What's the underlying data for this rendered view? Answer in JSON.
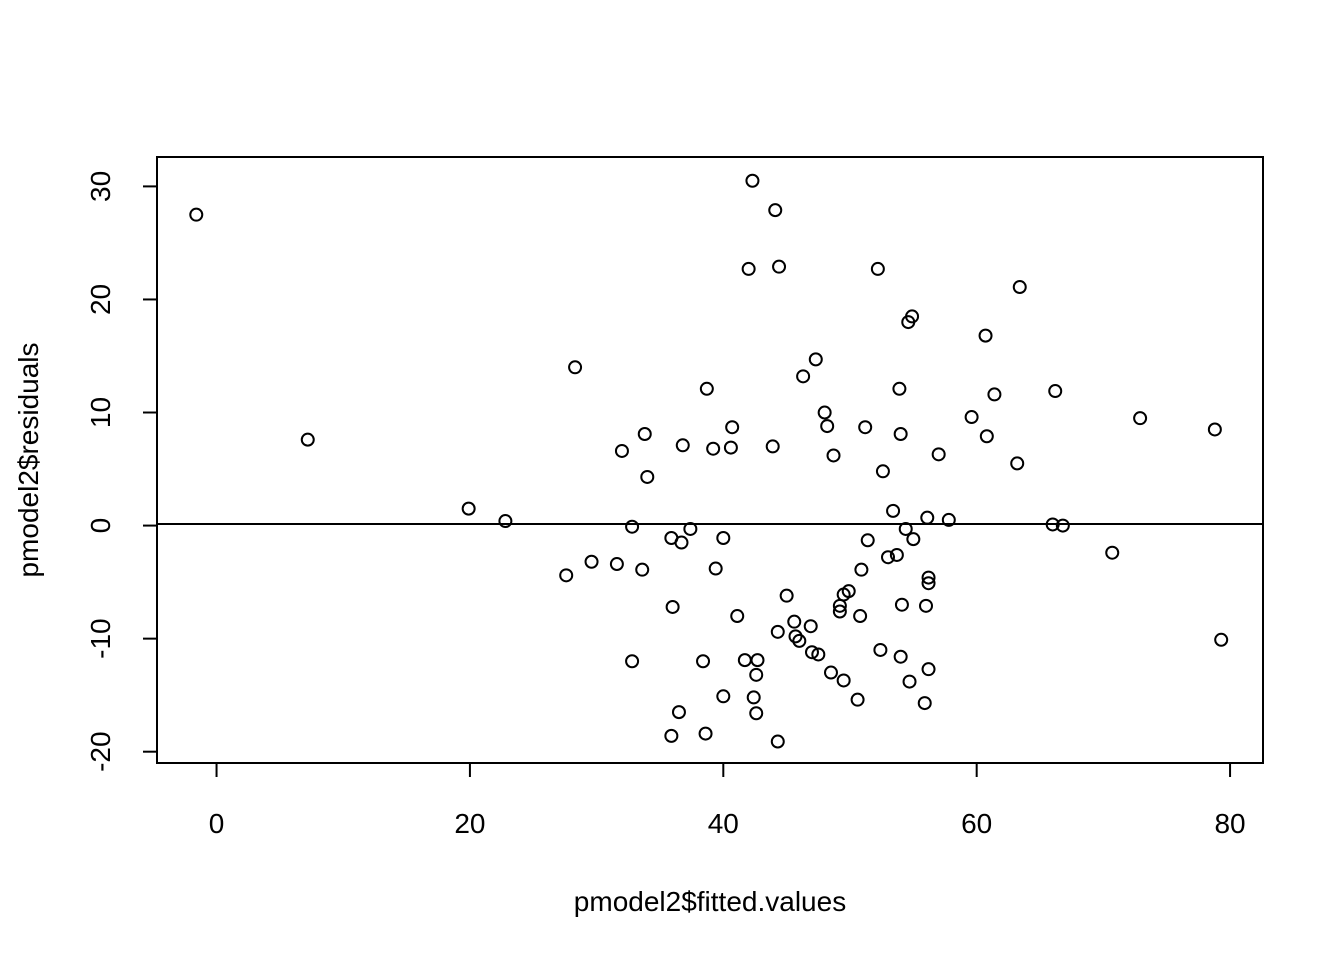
{
  "chart_data": {
    "type": "scatter",
    "title": "",
    "xlabel": "pmodel2$fitted.values",
    "ylabel": "pmodel2$residuals",
    "xlim": [
      -4.7,
      82.6
    ],
    "ylim": [
      -21.0,
      32.6
    ],
    "xticks": [
      0,
      20,
      40,
      60,
      80
    ],
    "yticks": [
      -20,
      -10,
      0,
      10,
      20,
      30
    ],
    "xtick_labels": [
      "0",
      "20",
      "40",
      "60",
      "80"
    ],
    "ytick_labels": [
      "-20",
      "-10",
      "0",
      "10",
      "20",
      "30"
    ],
    "hline": 0,
    "grid": false,
    "points": [
      [
        -1.6,
        27.5
      ],
      [
        7.2,
        7.6
      ],
      [
        19.9,
        1.5
      ],
      [
        22.8,
        0.4
      ],
      [
        27.6,
        -4.4
      ],
      [
        28.3,
        14.0
      ],
      [
        29.6,
        -3.2
      ],
      [
        31.6,
        -3.4
      ],
      [
        32.0,
        6.6
      ],
      [
        32.8,
        -0.1
      ],
      [
        33.6,
        -3.9
      ],
      [
        33.8,
        8.1
      ],
      [
        34.0,
        4.3
      ],
      [
        32.8,
        -12.0
      ],
      [
        35.9,
        -1.1
      ],
      [
        36.0,
        -7.2
      ],
      [
        36.7,
        -1.5
      ],
      [
        36.8,
        7.1
      ],
      [
        37.4,
        -0.3
      ],
      [
        35.9,
        -18.6
      ],
      [
        36.5,
        -16.5
      ],
      [
        38.4,
        -12.0
      ],
      [
        38.7,
        12.1
      ],
      [
        38.6,
        -18.4
      ],
      [
        39.2,
        6.8
      ],
      [
        39.4,
        -3.8
      ],
      [
        40.0,
        -1.1
      ],
      [
        40.6,
        6.9
      ],
      [
        40.0,
        -15.1
      ],
      [
        40.7,
        8.7
      ],
      [
        41.1,
        -8.0
      ],
      [
        41.7,
        -11.9
      ],
      [
        42.0,
        22.7
      ],
      [
        42.3,
        30.5
      ],
      [
        42.4,
        -15.2
      ],
      [
        42.7,
        -11.9
      ],
      [
        42.6,
        -13.2
      ],
      [
        42.6,
        -16.6
      ],
      [
        43.9,
        7.0
      ],
      [
        44.1,
        27.9
      ],
      [
        44.4,
        22.9
      ],
      [
        44.3,
        -9.4
      ],
      [
        44.3,
        -19.1
      ],
      [
        45.0,
        -6.2
      ],
      [
        45.6,
        -8.5
      ],
      [
        45.7,
        -9.8
      ],
      [
        46.0,
        -10.2
      ],
      [
        46.3,
        13.2
      ],
      [
        46.9,
        -8.9
      ],
      [
        47.0,
        -11.2
      ],
      [
        47.3,
        14.7
      ],
      [
        47.5,
        -11.4
      ],
      [
        48.0,
        10.0
      ],
      [
        48.2,
        8.8
      ],
      [
        48.5,
        -13.0
      ],
      [
        48.7,
        6.2
      ],
      [
        49.2,
        -7.6
      ],
      [
        49.2,
        -7.1
      ],
      [
        49.5,
        -13.7
      ],
      [
        49.5,
        -6.1
      ],
      [
        49.9,
        -5.8
      ],
      [
        50.6,
        -15.4
      ],
      [
        50.8,
        -8.0
      ],
      [
        50.9,
        -3.9
      ],
      [
        51.2,
        8.7
      ],
      [
        51.4,
        -1.3
      ],
      [
        52.2,
        22.7
      ],
      [
        52.4,
        -11.0
      ],
      [
        52.6,
        4.8
      ],
      [
        53.0,
        -2.8
      ],
      [
        53.4,
        1.3
      ],
      [
        53.7,
        -2.6
      ],
      [
        53.9,
        12.1
      ],
      [
        54.0,
        8.1
      ],
      [
        54.0,
        -11.6
      ],
      [
        54.1,
        -7.0
      ],
      [
        54.4,
        -0.3
      ],
      [
        54.6,
        18.0
      ],
      [
        54.7,
        -13.8
      ],
      [
        54.9,
        18.5
      ],
      [
        55.0,
        -1.2
      ],
      [
        55.9,
        -15.7
      ],
      [
        56.0,
        -7.1
      ],
      [
        56.1,
        0.7
      ],
      [
        56.2,
        -4.6
      ],
      [
        56.2,
        -5.1
      ],
      [
        56.2,
        -12.7
      ],
      [
        57.0,
        6.3
      ],
      [
        57.8,
        0.5
      ],
      [
        59.6,
        9.6
      ],
      [
        60.7,
        16.8
      ],
      [
        60.8,
        7.9
      ],
      [
        61.4,
        11.6
      ],
      [
        63.2,
        5.5
      ],
      [
        63.4,
        21.1
      ],
      [
        66.0,
        0.1
      ],
      [
        66.2,
        11.9
      ],
      [
        66.8,
        0.0
      ],
      [
        70.7,
        -2.4
      ],
      [
        72.9,
        9.5
      ],
      [
        78.8,
        8.5
      ],
      [
        79.3,
        -10.1
      ]
    ]
  }
}
